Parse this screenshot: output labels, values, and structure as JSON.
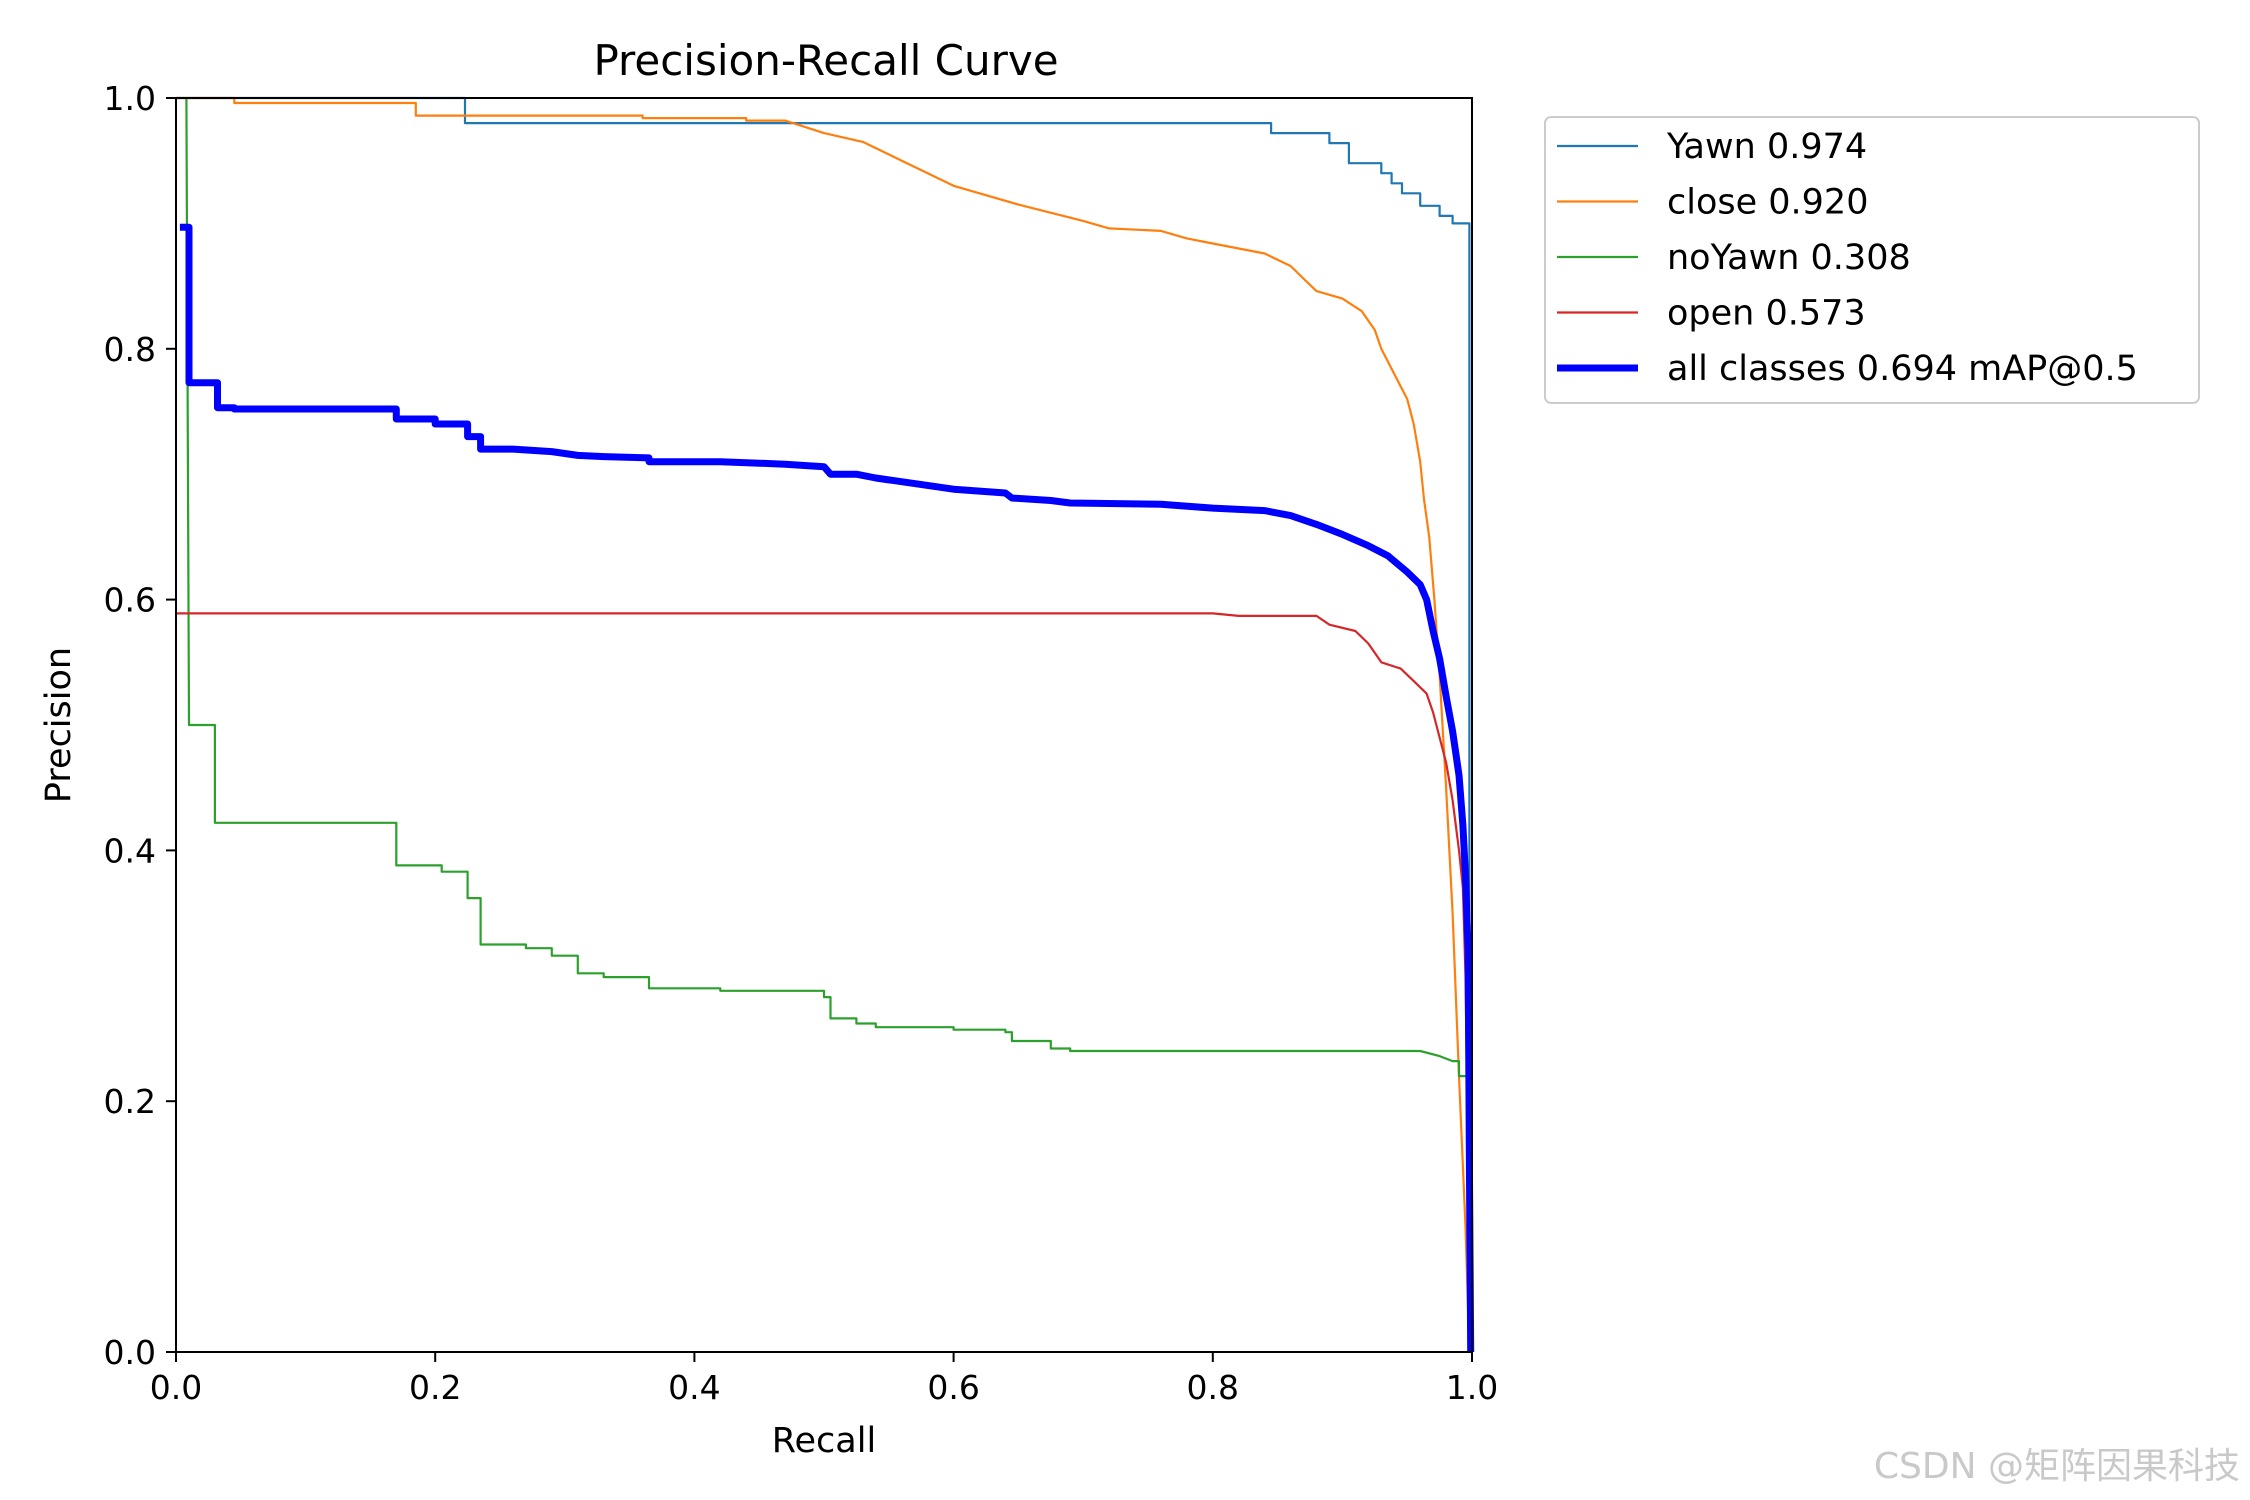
{
  "chart_data": {
    "type": "line",
    "title": "Precision-Recall Curve",
    "xlabel": "Recall",
    "ylabel": "Precision",
    "xlim": [
      0,
      1
    ],
    "ylim": [
      0,
      1
    ],
    "x_ticks": [
      "0.0",
      "0.2",
      "0.4",
      "0.6",
      "0.8",
      "1.0"
    ],
    "y_ticks": [
      "0.0",
      "0.2",
      "0.4",
      "0.6",
      "0.8",
      "1.0"
    ],
    "grid": false,
    "legend_position": "outside-upper-right",
    "series": [
      {
        "name": "Yawn",
        "label": "Yawn 0.974",
        "color": "#1f77b4",
        "width": "thin",
        "points": [
          [
            0,
            1.0
          ],
          [
            0.223,
            1.0
          ],
          [
            0.223,
            0.98
          ],
          [
            0.845,
            0.98
          ],
          [
            0.845,
            0.972
          ],
          [
            0.89,
            0.972
          ],
          [
            0.89,
            0.964
          ],
          [
            0.905,
            0.964
          ],
          [
            0.905,
            0.948
          ],
          [
            0.93,
            0.948
          ],
          [
            0.93,
            0.94
          ],
          [
            0.938,
            0.94
          ],
          [
            0.938,
            0.932
          ],
          [
            0.946,
            0.932
          ],
          [
            0.946,
            0.924
          ],
          [
            0.96,
            0.924
          ],
          [
            0.96,
            0.914
          ],
          [
            0.975,
            0.914
          ],
          [
            0.975,
            0.906
          ],
          [
            0.985,
            0.906
          ],
          [
            0.985,
            0.9
          ],
          [
            0.998,
            0.9
          ],
          [
            0.998,
            0.0
          ]
        ]
      },
      {
        "name": "close",
        "label": "close 0.920",
        "color": "#ff7f0e",
        "width": "thin",
        "points": [
          [
            0,
            1.0
          ],
          [
            0.045,
            1.0
          ],
          [
            0.045,
            0.996
          ],
          [
            0.185,
            0.996
          ],
          [
            0.185,
            0.986
          ],
          [
            0.36,
            0.986
          ],
          [
            0.36,
            0.984
          ],
          [
            0.44,
            0.984
          ],
          [
            0.44,
            0.982
          ],
          [
            0.47,
            0.982
          ],
          [
            0.5,
            0.972
          ],
          [
            0.53,
            0.965
          ],
          [
            0.56,
            0.95
          ],
          [
            0.6,
            0.93
          ],
          [
            0.65,
            0.915
          ],
          [
            0.7,
            0.902
          ],
          [
            0.72,
            0.896
          ],
          [
            0.76,
            0.894
          ],
          [
            0.78,
            0.888
          ],
          [
            0.8,
            0.884
          ],
          [
            0.84,
            0.876
          ],
          [
            0.86,
            0.866
          ],
          [
            0.87,
            0.856
          ],
          [
            0.88,
            0.846
          ],
          [
            0.9,
            0.84
          ],
          [
            0.915,
            0.83
          ],
          [
            0.925,
            0.815
          ],
          [
            0.93,
            0.8
          ],
          [
            0.94,
            0.78
          ],
          [
            0.95,
            0.76
          ],
          [
            0.955,
            0.74
          ],
          [
            0.96,
            0.71
          ],
          [
            0.963,
            0.68
          ],
          [
            0.967,
            0.65
          ],
          [
            0.971,
            0.6
          ],
          [
            0.975,
            0.54
          ],
          [
            0.98,
            0.45
          ],
          [
            0.985,
            0.35
          ],
          [
            0.99,
            0.22
          ],
          [
            0.995,
            0.1
          ],
          [
            0.998,
            0.0
          ]
        ]
      },
      {
        "name": "noYawn",
        "label": "noYawn 0.308",
        "color": "#2ca02c",
        "width": "thin",
        "points": [
          [
            0.008,
            1.0
          ],
          [
            0.01,
            0.5
          ],
          [
            0.03,
            0.5
          ],
          [
            0.03,
            0.422
          ],
          [
            0.17,
            0.422
          ],
          [
            0.17,
            0.388
          ],
          [
            0.205,
            0.388
          ],
          [
            0.205,
            0.383
          ],
          [
            0.225,
            0.383
          ],
          [
            0.225,
            0.362
          ],
          [
            0.235,
            0.362
          ],
          [
            0.235,
            0.325
          ],
          [
            0.27,
            0.325
          ],
          [
            0.27,
            0.322
          ],
          [
            0.29,
            0.322
          ],
          [
            0.29,
            0.316
          ],
          [
            0.31,
            0.316
          ],
          [
            0.31,
            0.302
          ],
          [
            0.33,
            0.302
          ],
          [
            0.33,
            0.299
          ],
          [
            0.365,
            0.299
          ],
          [
            0.365,
            0.29
          ],
          [
            0.42,
            0.29
          ],
          [
            0.42,
            0.288
          ],
          [
            0.5,
            0.288
          ],
          [
            0.5,
            0.283
          ],
          [
            0.505,
            0.283
          ],
          [
            0.505,
            0.266
          ],
          [
            0.525,
            0.266
          ],
          [
            0.525,
            0.262
          ],
          [
            0.54,
            0.262
          ],
          [
            0.54,
            0.259
          ],
          [
            0.6,
            0.259
          ],
          [
            0.6,
            0.257
          ],
          [
            0.64,
            0.257
          ],
          [
            0.64,
            0.255
          ],
          [
            0.645,
            0.255
          ],
          [
            0.645,
            0.248
          ],
          [
            0.675,
            0.248
          ],
          [
            0.675,
            0.242
          ],
          [
            0.69,
            0.242
          ],
          [
            0.69,
            0.24
          ],
          [
            0.96,
            0.24
          ],
          [
            0.975,
            0.236
          ],
          [
            0.985,
            0.232
          ],
          [
            0.99,
            0.232
          ],
          [
            0.99,
            0.22
          ],
          [
            0.998,
            0.22
          ],
          [
            0.998,
            0.0
          ]
        ]
      },
      {
        "name": "open",
        "label": "open 0.573",
        "color": "#d62728",
        "width": "thin",
        "points": [
          [
            0,
            0.589
          ],
          [
            0.8,
            0.589
          ],
          [
            0.82,
            0.587
          ],
          [
            0.88,
            0.587
          ],
          [
            0.89,
            0.58
          ],
          [
            0.91,
            0.575
          ],
          [
            0.92,
            0.565
          ],
          [
            0.93,
            0.55
          ],
          [
            0.945,
            0.545
          ],
          [
            0.955,
            0.535
          ],
          [
            0.965,
            0.525
          ],
          [
            0.97,
            0.51
          ],
          [
            0.975,
            0.49
          ],
          [
            0.98,
            0.47
          ],
          [
            0.985,
            0.44
          ],
          [
            0.99,
            0.4
          ],
          [
            0.993,
            0.37
          ],
          [
            0.995,
            0.3
          ],
          [
            0.997,
            0.15
          ],
          [
            0.998,
            0.0
          ]
        ]
      },
      {
        "name": "all classes",
        "label": "all classes 0.694 mAP@0.5",
        "color": "#0000ff",
        "width": "thick",
        "points": [
          [
            0.003,
            0.897
          ],
          [
            0.01,
            0.897
          ],
          [
            0.01,
            0.773
          ],
          [
            0.032,
            0.773
          ],
          [
            0.032,
            0.753
          ],
          [
            0.045,
            0.753
          ],
          [
            0.045,
            0.752
          ],
          [
            0.17,
            0.752
          ],
          [
            0.17,
            0.744
          ],
          [
            0.2,
            0.744
          ],
          [
            0.2,
            0.74
          ],
          [
            0.225,
            0.74
          ],
          [
            0.225,
            0.73
          ],
          [
            0.235,
            0.73
          ],
          [
            0.235,
            0.72
          ],
          [
            0.26,
            0.72
          ],
          [
            0.29,
            0.718
          ],
          [
            0.31,
            0.715
          ],
          [
            0.33,
            0.714
          ],
          [
            0.365,
            0.713
          ],
          [
            0.365,
            0.71
          ],
          [
            0.42,
            0.71
          ],
          [
            0.47,
            0.708
          ],
          [
            0.5,
            0.706
          ],
          [
            0.505,
            0.7
          ],
          [
            0.525,
            0.7
          ],
          [
            0.54,
            0.697
          ],
          [
            0.6,
            0.688
          ],
          [
            0.64,
            0.685
          ],
          [
            0.645,
            0.681
          ],
          [
            0.675,
            0.679
          ],
          [
            0.69,
            0.677
          ],
          [
            0.76,
            0.676
          ],
          [
            0.8,
            0.673
          ],
          [
            0.84,
            0.671
          ],
          [
            0.86,
            0.667
          ],
          [
            0.88,
            0.66
          ],
          [
            0.9,
            0.652
          ],
          [
            0.92,
            0.643
          ],
          [
            0.935,
            0.635
          ],
          [
            0.95,
            0.622
          ],
          [
            0.96,
            0.612
          ],
          [
            0.965,
            0.6
          ],
          [
            0.97,
            0.575
          ],
          [
            0.975,
            0.553
          ],
          [
            0.98,
            0.523
          ],
          [
            0.985,
            0.495
          ],
          [
            0.99,
            0.46
          ],
          [
            0.993,
            0.42
          ],
          [
            0.995,
            0.38
          ],
          [
            0.997,
            0.32
          ],
          [
            0.998,
            0.15
          ],
          [
            0.999,
            0.0
          ]
        ]
      }
    ]
  },
  "watermark": "CSDN @矩阵因果科技"
}
